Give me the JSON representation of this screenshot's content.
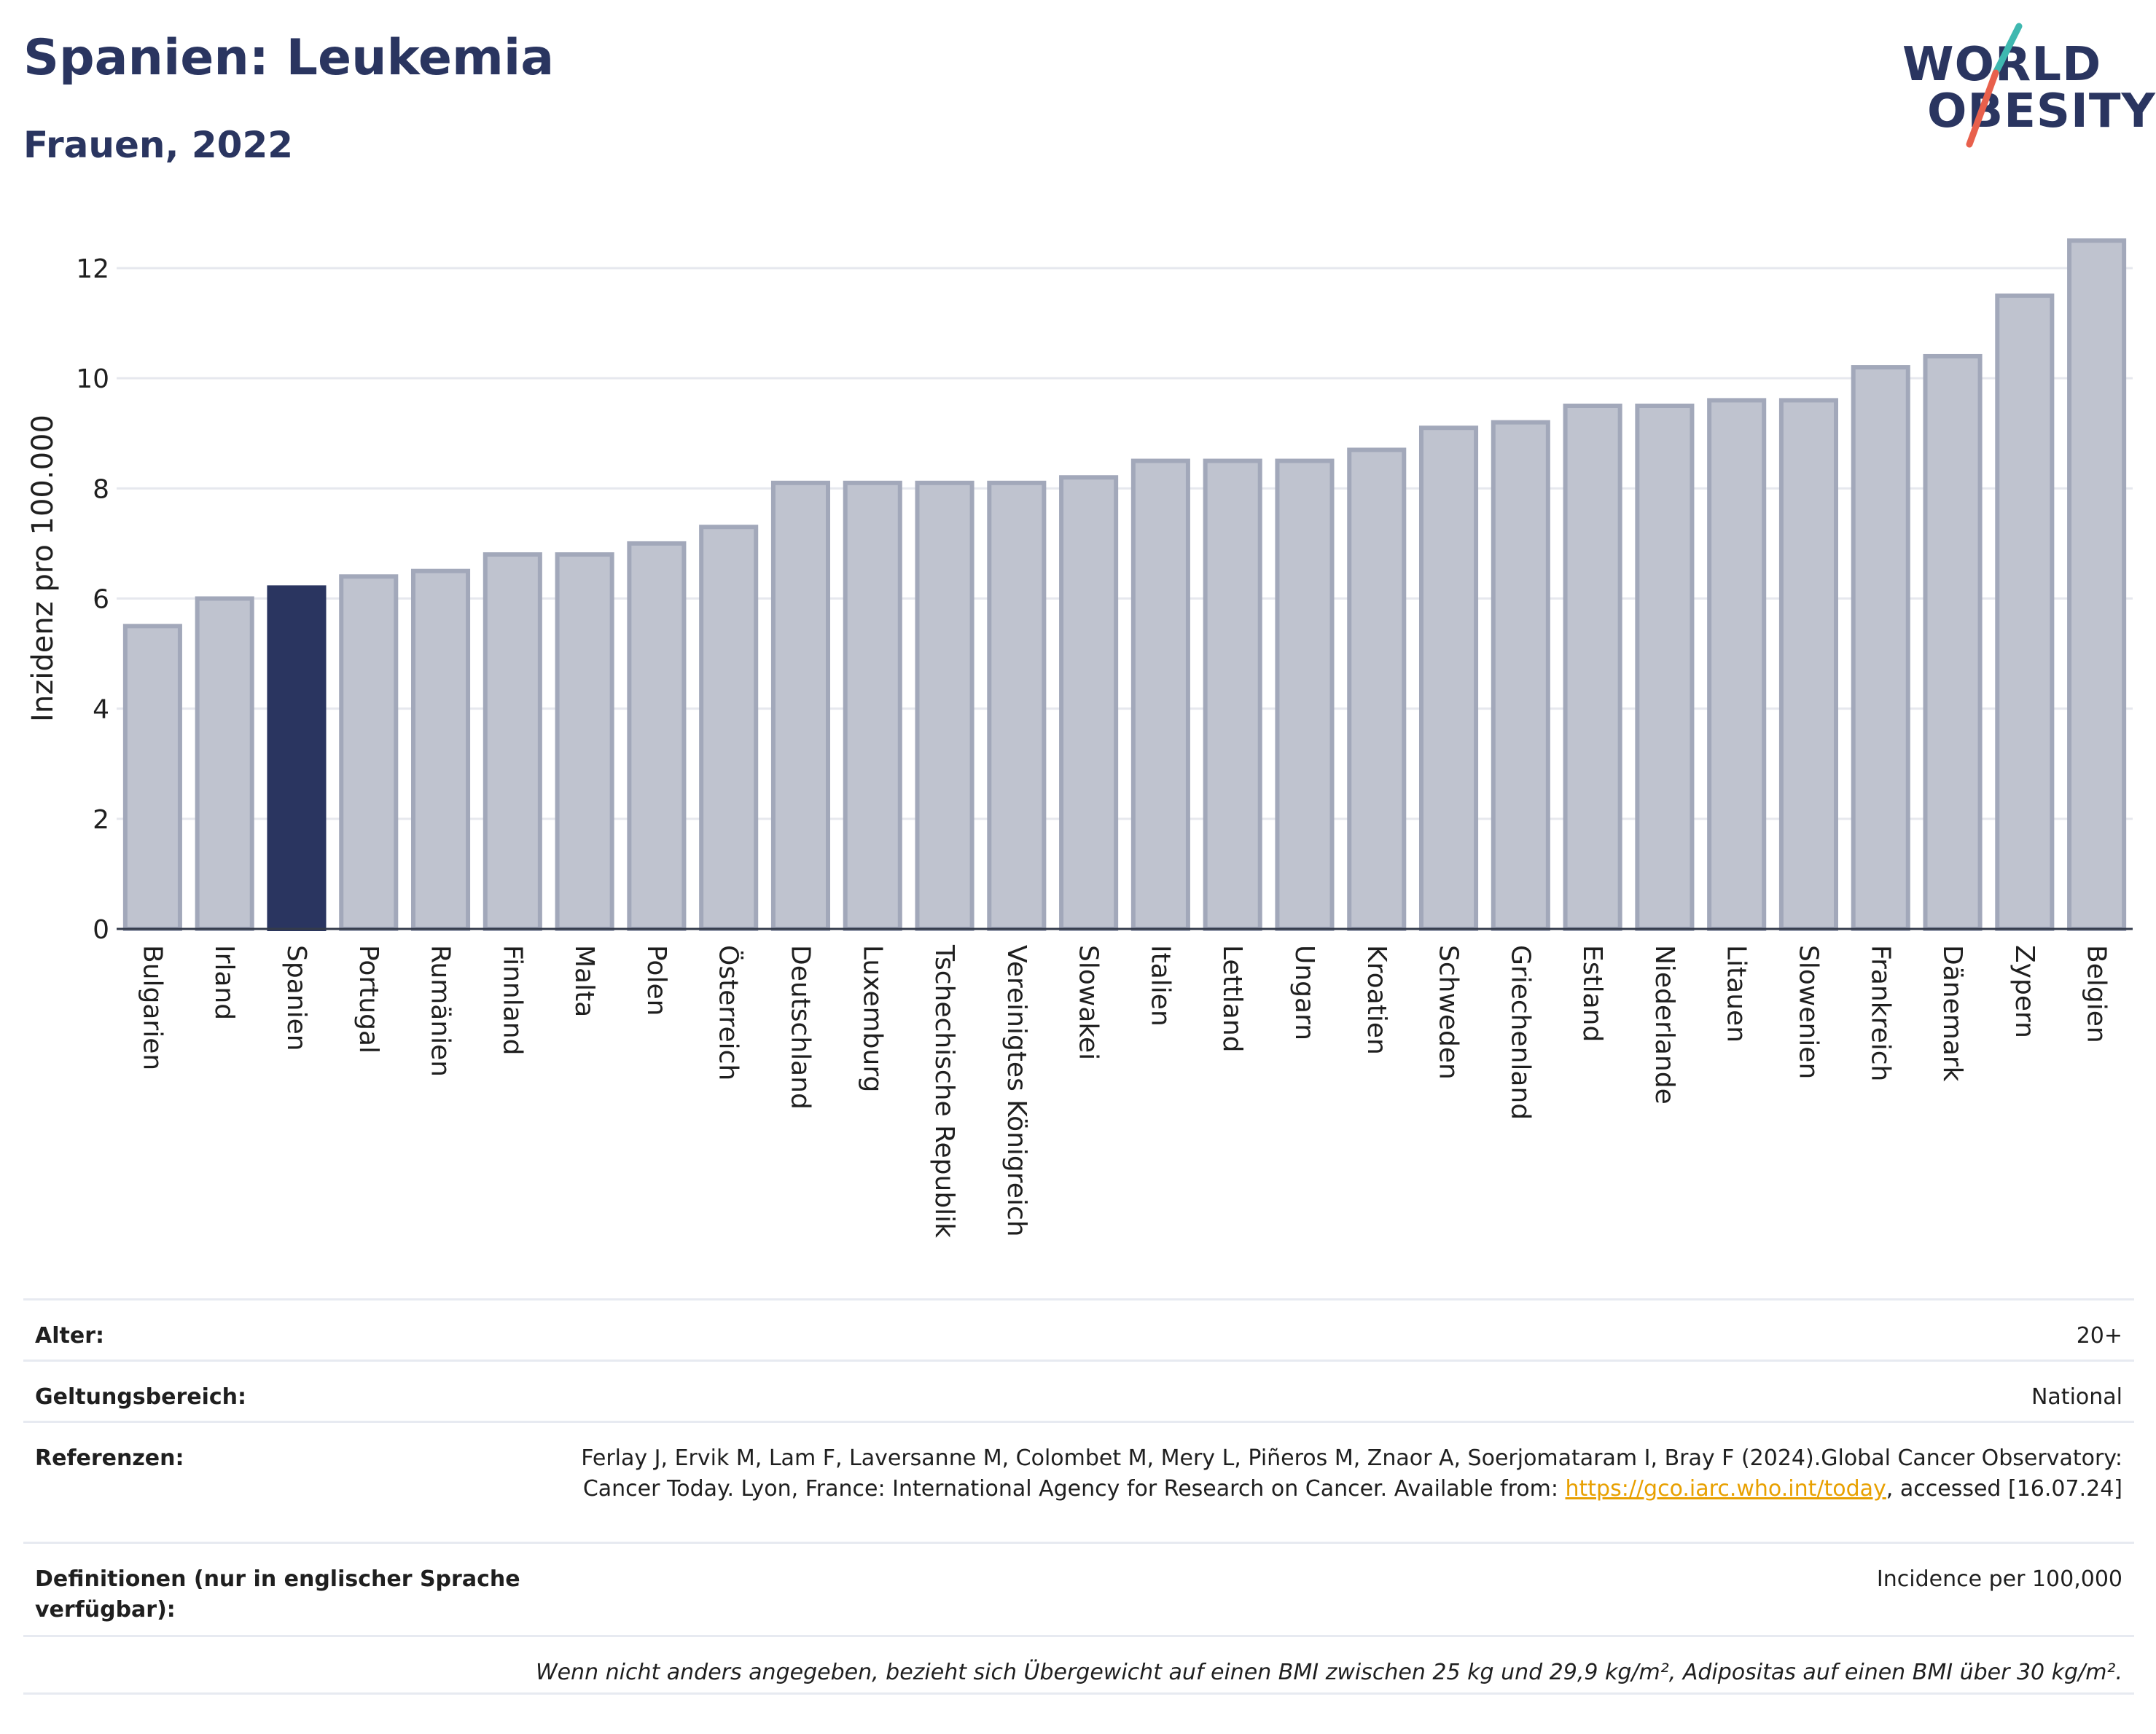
{
  "header": {
    "title": "Spanien: Leukemia",
    "subtitle": "Frauen, 2022"
  },
  "logo": {
    "line1": "WORLD",
    "line2": "OBESITY"
  },
  "colors": {
    "highlight": "#2a3560",
    "bar_fill": "#bfc3cf",
    "bar_stroke": "#a2a8ba",
    "accent_teal": "#3fb8b0",
    "accent_coral": "#e8604c",
    "link": "#e8a000"
  },
  "chart_data": {
    "type": "bar",
    "ylabel": "Inzidenz pro 100.000",
    "ylim": [
      0,
      12.9
    ],
    "yticks": [
      0,
      2,
      4,
      6,
      8,
      10,
      12
    ],
    "grid": true,
    "highlight_category": "Spanien",
    "categories": [
      "Bulgarien",
      "Irland",
      "Spanien",
      "Portugal",
      "Rumänien",
      "Finnland",
      "Malta",
      "Polen",
      "Österreich",
      "Deutschland",
      "Luxemburg",
      "Tschechische Republik",
      "Vereinigtes Königreich",
      "Slowakei",
      "Italien",
      "Lettland",
      "Ungarn",
      "Kroatien",
      "Schweden",
      "Griechenland",
      "Estland",
      "Niederlande",
      "Litauen",
      "Slowenien",
      "Frankreich",
      "Dänemark",
      "Zypern",
      "Belgien"
    ],
    "values": [
      5.5,
      6.0,
      6.2,
      6.4,
      6.5,
      6.8,
      6.8,
      7.0,
      7.3,
      8.1,
      8.1,
      8.1,
      8.1,
      8.2,
      8.5,
      8.5,
      8.5,
      8.7,
      9.1,
      9.2,
      9.5,
      9.5,
      9.6,
      9.6,
      10.2,
      10.4,
      11.5,
      12.5
    ]
  },
  "meta": {
    "age_label": "Alter:",
    "age_value": "20+",
    "scope_label": "Geltungsbereich:",
    "scope_value": "National",
    "refs_label": "Referenzen:",
    "refs_text_1": "Ferlay J, Ervik M, Lam F, Laversanne M, Colombet M, Mery L, Piñeros M, Znaor A, Soerjomataram I, Bray F (2024).Global Cancer Observatory: Cancer Today. Lyon, France: International Agency for Research on Cancer. Available from: ",
    "refs_link": "https://gco.iarc.who.int/today",
    "refs_text_2": ", accessed [16.07.24]",
    "defs_label": "Definitionen (nur in englischer Sprache verfügbar):",
    "defs_value": "Incidence per 100,000",
    "footnote": "Wenn nicht anders angegeben, bezieht sich Übergewicht auf einen BMI zwischen 25 kg und 29,9 kg/m², Adipositas auf einen BMI über 30 kg/m²."
  }
}
